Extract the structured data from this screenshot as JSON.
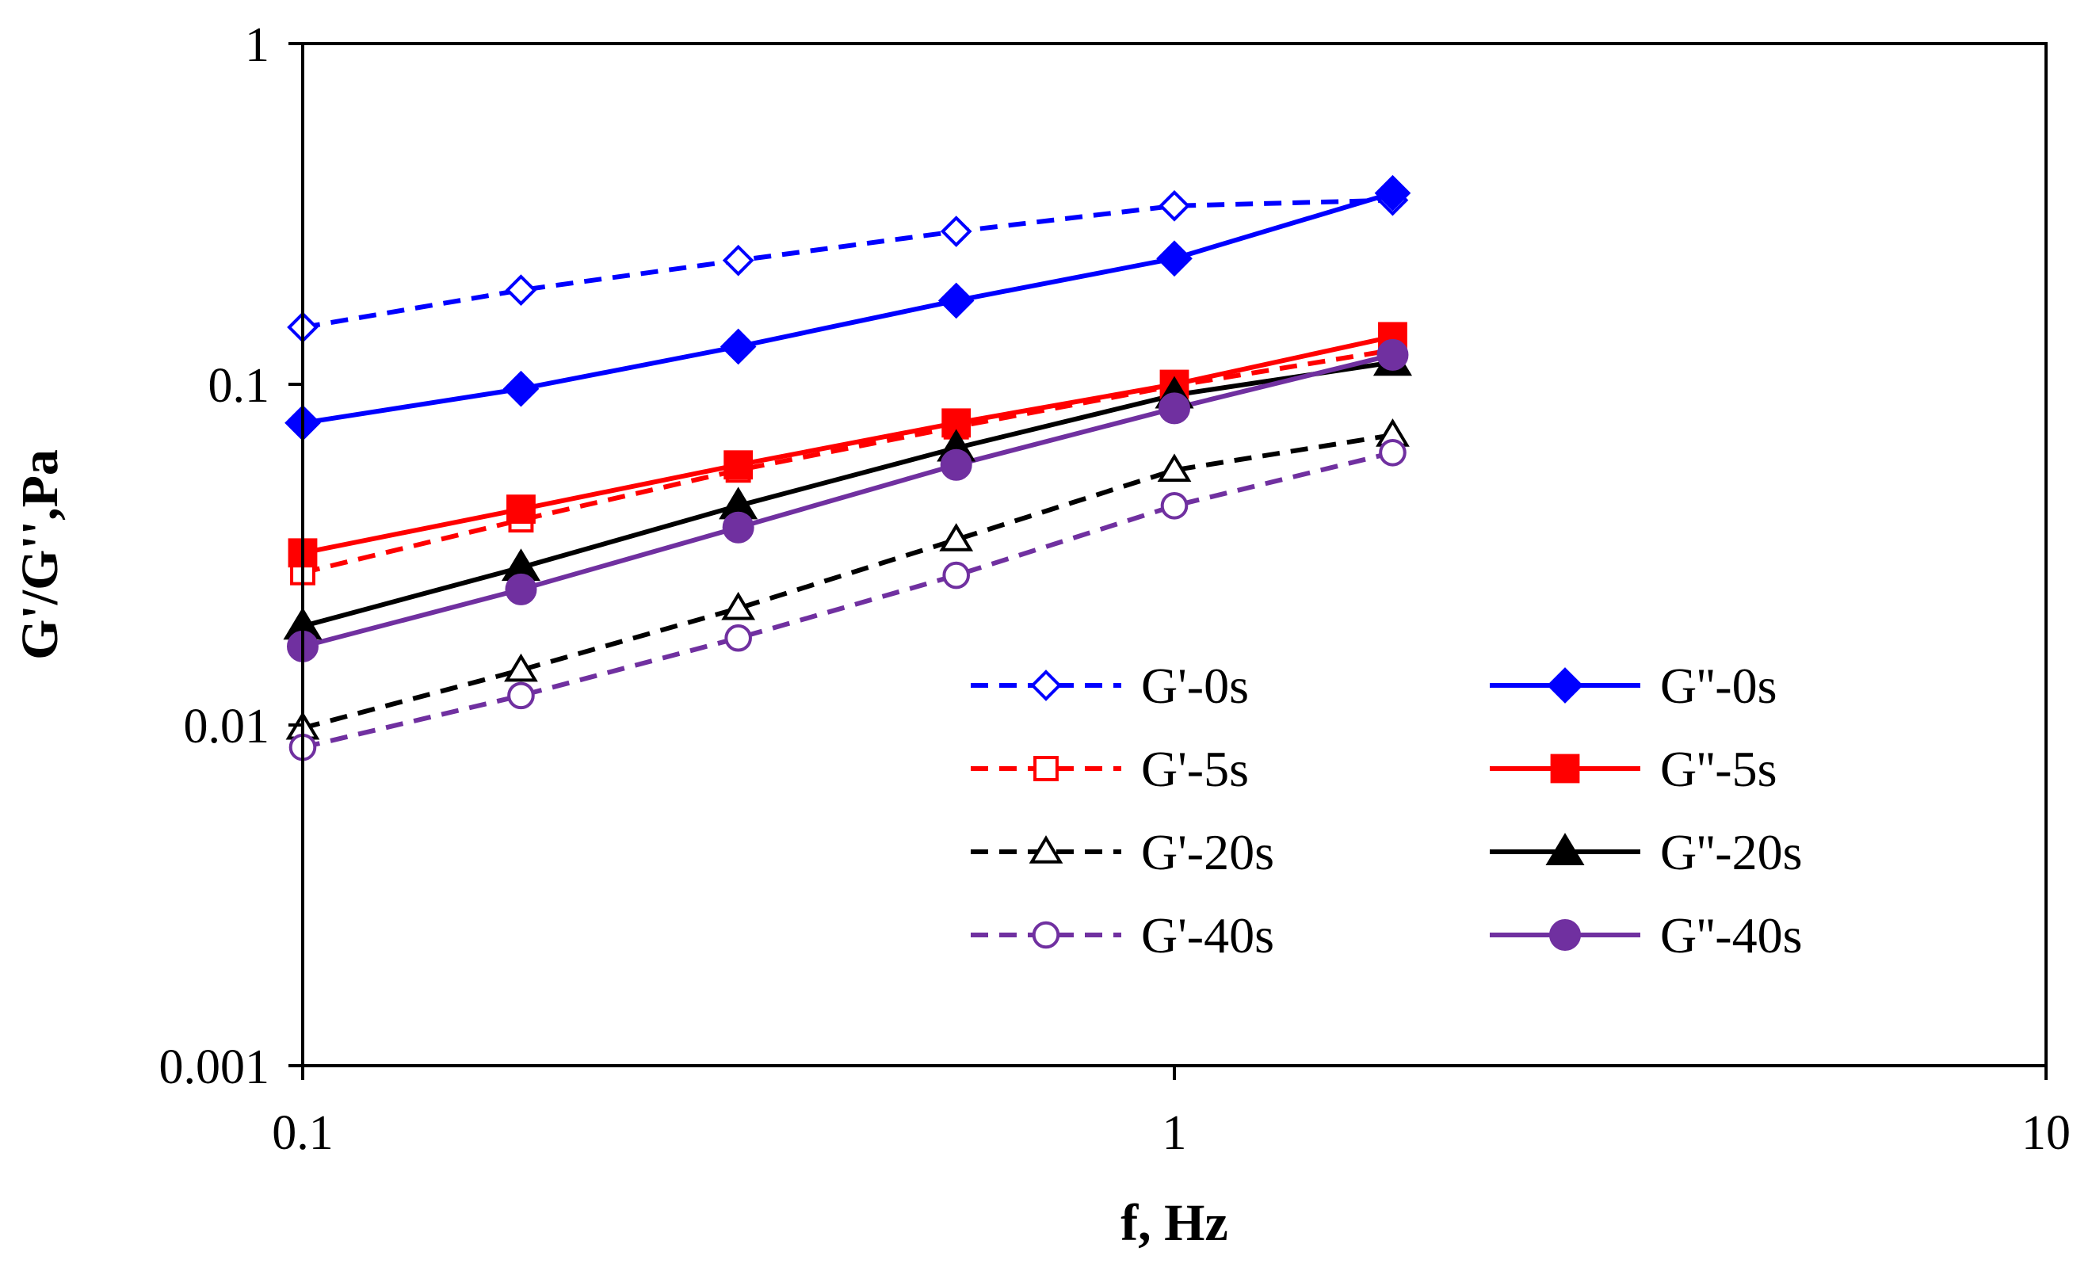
{
  "chart_data": {
    "type": "line",
    "title": "",
    "xlabel": "f, Hz",
    "ylabel": "G'/G'',Pa",
    "xscale": "log",
    "yscale": "log",
    "xlim": [
      0.1,
      10
    ],
    "ylim": [
      0.001,
      1
    ],
    "x_ticks": [
      {
        "value": 0.1,
        "label": "0.1"
      },
      {
        "value": 1,
        "label": "1"
      },
      {
        "value": 10,
        "label": "10"
      }
    ],
    "y_ticks": [
      {
        "value": 0.001,
        "label": "0.001"
      },
      {
        "value": 0.01,
        "label": "0.01"
      },
      {
        "value": 0.1,
        "label": "0.1"
      },
      {
        "value": 1,
        "label": "1"
      }
    ],
    "grid": false,
    "legend_position": "bottom-right",
    "x": [
      0.1,
      0.178,
      0.316,
      0.562,
      1.0,
      1.78
    ],
    "series": [
      {
        "name": "G'-0s",
        "color": "#0000FF",
        "dash": "dashed",
        "marker": "diamond",
        "filled": false,
        "values": [
          0.147,
          0.189,
          0.231,
          0.281,
          0.334,
          0.347
        ]
      },
      {
        "name": "G''-0s",
        "color": "#0000FF",
        "dash": "solid",
        "marker": "diamond",
        "filled": true,
        "values": [
          0.077,
          0.097,
          0.129,
          0.176,
          0.234,
          0.364
        ]
      },
      {
        "name": "G'-5s",
        "color": "#FF0000",
        "dash": "dashed",
        "marker": "square",
        "filled": false,
        "values": [
          0.028,
          0.04,
          0.056,
          0.075,
          0.099,
          0.126
        ]
      },
      {
        "name": "G''-5s",
        "color": "#FF0000",
        "dash": "solid",
        "marker": "square",
        "filled": true,
        "values": [
          0.032,
          0.043,
          0.058,
          0.077,
          0.1,
          0.138
        ]
      },
      {
        "name": "G'-20s",
        "color": "#000000",
        "dash": "dashed",
        "marker": "triangle",
        "filled": false,
        "values": [
          0.0098,
          0.0145,
          0.022,
          0.035,
          0.056,
          0.071
        ]
      },
      {
        "name": "G''-20s",
        "color": "#000000",
        "dash": "solid",
        "marker": "triangle",
        "filled": true,
        "values": [
          0.0195,
          0.029,
          0.044,
          0.065,
          0.093,
          0.116
        ]
      },
      {
        "name": "G'-40s",
        "color": "#7030A0",
        "dash": "dashed",
        "marker": "circle",
        "filled": false,
        "values": [
          0.0086,
          0.0122,
          0.018,
          0.0275,
          0.044,
          0.063
        ]
      },
      {
        "name": "G''-40s",
        "color": "#7030A0",
        "dash": "solid",
        "marker": "circle",
        "filled": true,
        "values": [
          0.017,
          0.025,
          0.038,
          0.058,
          0.085,
          0.122
        ]
      }
    ]
  }
}
